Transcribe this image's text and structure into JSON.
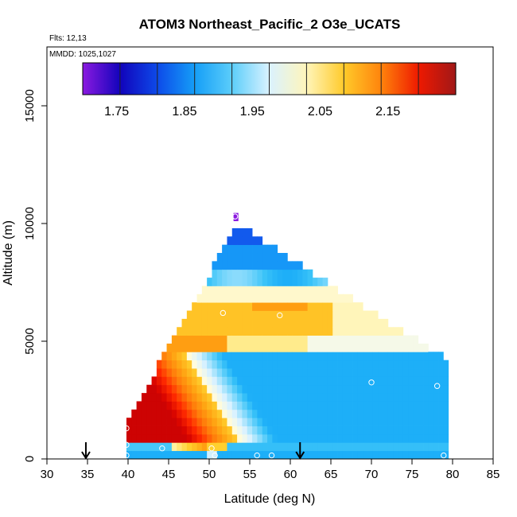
{
  "chart_data": {
    "type": "heatmap",
    "title": "ATOM3 Northeast_Pacific_2 O3e_UCATS",
    "flights_label": "Flts: 12,13",
    "dates_label": "MMDD: 1025,1027",
    "xlabel": "Latitude (deg N)",
    "ylabel": "Altitude (m)",
    "xlim": [
      30,
      85
    ],
    "ylim": [
      0,
      17500
    ],
    "x_ticks": [
      "30",
      "35",
      "40",
      "45",
      "50",
      "55",
      "60",
      "65",
      "70",
      "75",
      "80",
      "85"
    ],
    "y_ticks": [
      "0",
      "5000",
      "10000",
      "15000"
    ],
    "colorbar": {
      "vmin": 1.7,
      "vmax": 2.25,
      "ticks": [
        "1.75",
        "1.85",
        "1.95",
        "2.05",
        "2.15"
      ],
      "colors": [
        "#8b1ae0",
        "#2a07a8",
        "#0000c8",
        "#0a3ee6",
        "#1a78f5",
        "#14a8f8",
        "#3cc4f8",
        "#8cdcfc",
        "#daf2ff",
        "#fffce0",
        "#fff0a0",
        "#ffd230",
        "#ffa814",
        "#ff7a0a",
        "#ff2a00",
        "#d40000",
        "#a01818"
      ]
    },
    "arrows_lat": [
      34.8,
      61.2
    ],
    "sample_points": [
      {
        "lat": 39.8,
        "alt": 1300
      },
      {
        "lat": 39.8,
        "alt": 600
      },
      {
        "lat": 39.8,
        "alt": 150
      },
      {
        "lat": 44.2,
        "alt": 450
      },
      {
        "lat": 50.3,
        "alt": 450
      },
      {
        "lat": 50.7,
        "alt": 150
      },
      {
        "lat": 51.7,
        "alt": 6200
      },
      {
        "lat": 53.2,
        "alt": 10300
      },
      {
        "lat": 55.9,
        "alt": 150
      },
      {
        "lat": 57.7,
        "alt": 150
      },
      {
        "lat": 58.7,
        "alt": 6100
      },
      {
        "lat": 70.0,
        "alt": 3250
      },
      {
        "lat": 78.1,
        "alt": 3100
      },
      {
        "lat": 78.9,
        "alt": 150
      }
    ]
  }
}
